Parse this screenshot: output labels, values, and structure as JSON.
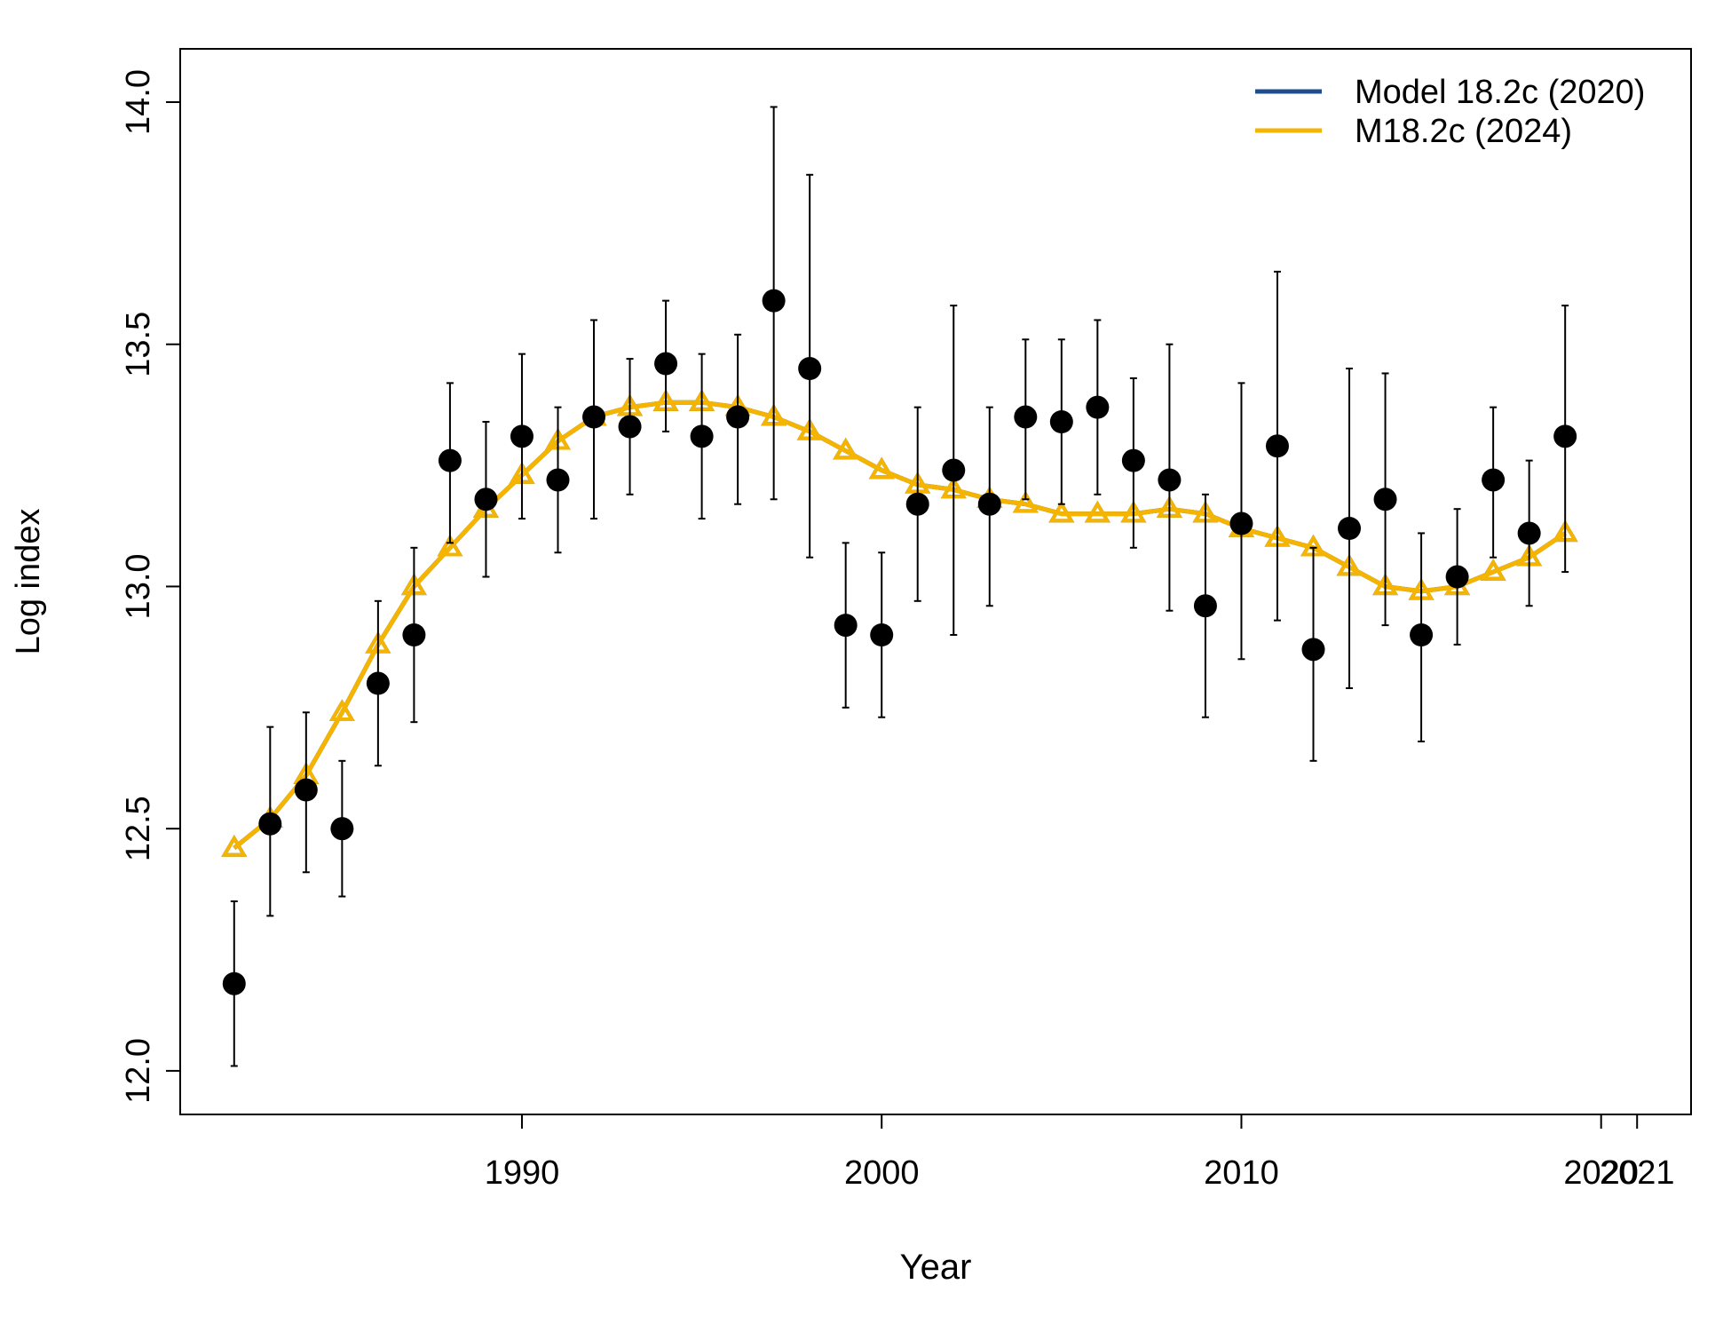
{
  "chart_data": {
    "type": "line",
    "xlabel": "Year",
    "ylabel": "Log index",
    "xlim": [
      1980.5,
      2022.5
    ],
    "ylim": [
      11.91,
      14.11
    ],
    "x_ticks": [
      1990,
      2000,
      2010,
      2020,
      2021
    ],
    "y_ticks": [
      12.0,
      12.5,
      13.0,
      13.5,
      14.0
    ],
    "y_tick_labels": [
      "12.0",
      "12.5",
      "13.0",
      "13.5",
      "14.0"
    ],
    "legend_position": "top-right",
    "legend": [
      {
        "label": "Model 18.2c (2020)",
        "color": "#1f4e8c"
      },
      {
        "label": "M18.2c (2024)",
        "color": "#f5b400"
      }
    ],
    "observed": {
      "x": [
        1982,
        1983,
        1984,
        1985,
        1986,
        1987,
        1988,
        1989,
        1990,
        1991,
        1992,
        1993,
        1994,
        1995,
        1996,
        1997,
        1998,
        1999,
        2000,
        2001,
        2002,
        2003,
        2004,
        2005,
        2006,
        2007,
        2008,
        2009,
        2010,
        2011,
        2012,
        2013,
        2014,
        2015,
        2016,
        2017,
        2018,
        2019
      ],
      "y": [
        12.18,
        12.51,
        12.58,
        12.5,
        12.8,
        12.9,
        13.26,
        13.18,
        13.31,
        13.22,
        13.35,
        13.33,
        13.46,
        13.31,
        13.35,
        13.59,
        13.45,
        12.92,
        12.9,
        13.17,
        13.24,
        13.17,
        13.35,
        13.34,
        13.37,
        13.26,
        13.22,
        12.96,
        13.13,
        13.29,
        12.87,
        13.12,
        13.18,
        12.9,
        13.02,
        13.22,
        13.11,
        13.31
      ],
      "lower": [
        12.01,
        12.32,
        12.41,
        12.36,
        12.63,
        12.72,
        13.09,
        13.02,
        13.14,
        13.07,
        13.14,
        13.19,
        13.32,
        13.14,
        13.17,
        13.18,
        13.06,
        12.75,
        12.73,
        12.97,
        12.9,
        12.96,
        13.18,
        13.17,
        13.19,
        13.08,
        12.95,
        12.73,
        12.85,
        12.93,
        12.64,
        12.79,
        12.92,
        12.68,
        12.88,
        13.06,
        12.96,
        13.03
      ],
      "upper": [
        12.35,
        12.71,
        12.74,
        12.64,
        12.97,
        13.08,
        13.42,
        13.34,
        13.48,
        13.37,
        13.55,
        13.47,
        13.59,
        13.48,
        13.52,
        13.99,
        13.85,
        13.09,
        13.07,
        13.37,
        13.58,
        13.37,
        13.51,
        13.51,
        13.55,
        13.43,
        13.5,
        13.19,
        13.42,
        13.65,
        13.08,
        13.45,
        13.44,
        13.11,
        13.16,
        13.37,
        13.26,
        13.58
      ]
    },
    "series": [
      {
        "name": "Model 18.2c (2020)",
        "color": "#1f4e8c",
        "x": [
          1982,
          1983,
          1984,
          1985,
          1986,
          1987,
          1988,
          1989,
          1990,
          1991,
          1992,
          1993,
          1994,
          1995,
          1996,
          1997,
          1998,
          1999,
          2000,
          2001,
          2002,
          2003,
          2004,
          2005,
          2006,
          2007,
          2008,
          2009,
          2010,
          2011,
          2012,
          2013,
          2014,
          2015,
          2016,
          2017,
          2018,
          2019
        ],
        "y": [
          12.46,
          12.52,
          12.61,
          12.74,
          12.88,
          13.0,
          13.08,
          13.16,
          13.23,
          13.3,
          13.35,
          13.37,
          13.38,
          13.38,
          13.37,
          13.35,
          13.32,
          13.28,
          13.24,
          13.21,
          13.2,
          13.18,
          13.17,
          13.15,
          13.15,
          13.15,
          13.16,
          13.15,
          13.12,
          13.1,
          13.08,
          13.04,
          13.0,
          12.99,
          13.0,
          13.03,
          13.06,
          13.11
        ]
      },
      {
        "name": "M18.2c (2024)",
        "color": "#f5b400",
        "x": [
          1982,
          1983,
          1984,
          1985,
          1986,
          1987,
          1988,
          1989,
          1990,
          1991,
          1992,
          1993,
          1994,
          1995,
          1996,
          1997,
          1998,
          1999,
          2000,
          2001,
          2002,
          2003,
          2004,
          2005,
          2006,
          2007,
          2008,
          2009,
          2010,
          2011,
          2012,
          2013,
          2014,
          2015,
          2016,
          2017,
          2018,
          2019
        ],
        "y": [
          12.46,
          12.52,
          12.61,
          12.74,
          12.88,
          13.0,
          13.08,
          13.16,
          13.23,
          13.3,
          13.35,
          13.37,
          13.38,
          13.38,
          13.37,
          13.35,
          13.32,
          13.28,
          13.24,
          13.21,
          13.2,
          13.18,
          13.17,
          13.15,
          13.15,
          13.15,
          13.16,
          13.15,
          13.12,
          13.1,
          13.08,
          13.04,
          13.0,
          12.99,
          13.0,
          13.03,
          13.06,
          13.11
        ]
      }
    ]
  }
}
